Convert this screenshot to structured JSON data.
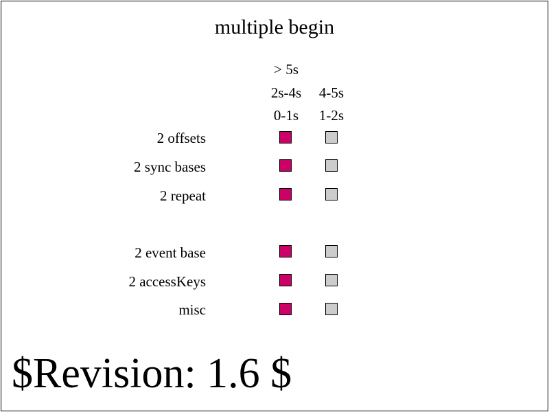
{
  "title": "multiple begin",
  "column_headers": {
    "left": [
      "> 5s",
      "2s-4s",
      "0-1s"
    ],
    "right": [
      "4-5s",
      "1-2s"
    ]
  },
  "rows": [
    {
      "label": "2 offsets",
      "left_state": "fail",
      "right_state": "pending"
    },
    {
      "label": "2 sync bases",
      "left_state": "fail",
      "right_state": "pending"
    },
    {
      "label": "2 repeat",
      "left_state": "fail",
      "right_state": "pending"
    },
    {
      "label": "2 event base",
      "left_state": "fail",
      "right_state": "pending"
    },
    {
      "label": "2 accessKeys",
      "left_state": "fail",
      "right_state": "pending"
    },
    {
      "label": "misc",
      "left_state": "fail",
      "right_state": "pending"
    }
  ],
  "colors": {
    "fail": "#cc0066",
    "pending": "#cccccc",
    "border": "#000000"
  },
  "revision": "$Revision: 1.6 $"
}
